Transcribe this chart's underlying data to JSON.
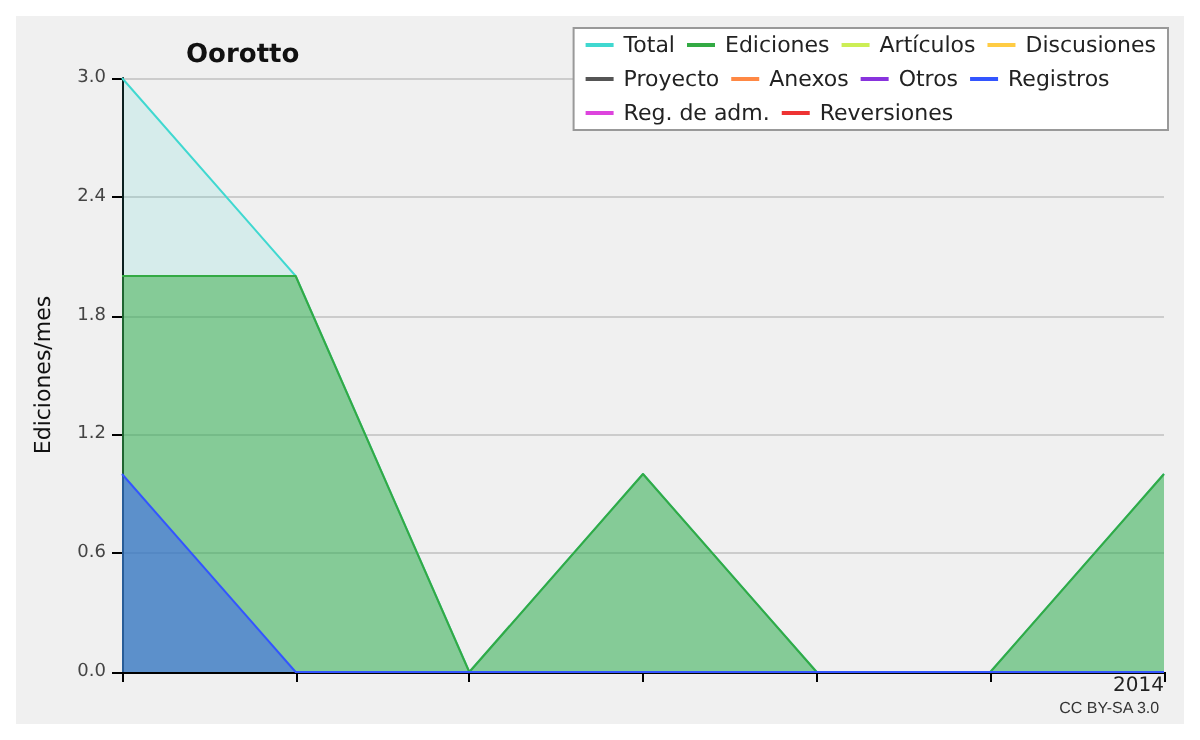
{
  "chart_data": {
    "type": "area",
    "title": "Oorotto",
    "ylabel": "Ediciones/mes",
    "categories": [
      null,
      null,
      null,
      null,
      null,
      null,
      "2014"
    ],
    "series": [
      {
        "name": "Total",
        "color": "#40d8d0",
        "values": [
          3,
          2,
          0,
          1,
          0,
          0,
          1
        ]
      },
      {
        "name": "Ediciones",
        "color": "#33aa44",
        "values": [
          2,
          2,
          0,
          1,
          0,
          0,
          1
        ]
      },
      {
        "name": "Artículos",
        "color": "#ccee55",
        "values": [
          null,
          null,
          null,
          null,
          null,
          null,
          null
        ]
      },
      {
        "name": "Discusiones",
        "color": "#ffcc44",
        "values": [
          null,
          null,
          null,
          null,
          null,
          null,
          null
        ]
      },
      {
        "name": "Proyecto",
        "color": "#555555",
        "values": [
          null,
          null,
          null,
          null,
          null,
          null,
          null
        ]
      },
      {
        "name": "Anexos",
        "color": "#ff8844",
        "values": [
          null,
          null,
          null,
          null,
          null,
          null,
          null
        ]
      },
      {
        "name": "Otros",
        "color": "#8833dd",
        "values": [
          null,
          null,
          null,
          null,
          null,
          null,
          null
        ]
      },
      {
        "name": "Registros",
        "color": "#3355ff",
        "values": [
          1,
          0,
          0,
          0,
          0,
          0,
          0
        ]
      },
      {
        "name": "Reg. de adm.",
        "color": "#dd44dd",
        "values": [
          null,
          null,
          null,
          null,
          null,
          null,
          null
        ]
      },
      {
        "name": "Reversiones",
        "color": "#ee3333",
        "values": [
          null,
          null,
          null,
          null,
          null,
          null,
          null
        ]
      }
    ],
    "ylim": [
      0,
      3
    ],
    "yticks": [
      {
        "value": 0,
        "label": "0.0"
      },
      {
        "value": 0.6,
        "label": "0.6"
      },
      {
        "value": 1.2,
        "label": "1.2"
      },
      {
        "value": 1.8,
        "label": "1.8"
      },
      {
        "value": 2.4,
        "label": "2.4"
      },
      {
        "value": 3,
        "label": "3.0"
      }
    ],
    "grid": "y",
    "legend": "top right",
    "marker": "none",
    "annotations": [
      "CC BY-SA 3.0"
    ]
  }
}
